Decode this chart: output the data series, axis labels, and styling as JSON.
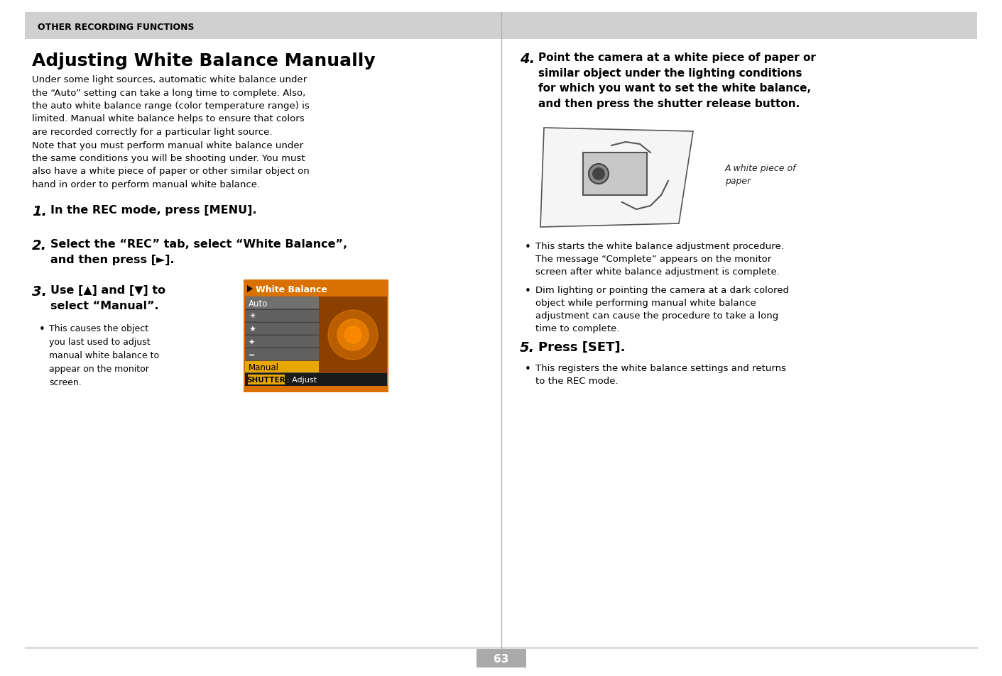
{
  "page_bg": "#ffffff",
  "header_bg": "#d0d0d0",
  "header_text": "OTHER RECORDING FUNCTIONS",
  "header_text_color": "#000000",
  "title": "Adjusting White Balance Manually",
  "title_color": "#000000",
  "divider_color": "#b0b0b0",
  "page_number": "63",
  "page_number_bg": "#aaaaaa",
  "body_text_color": "#000000",
  "left_col_intro": "Under some light sources, automatic white balance under\nthe “Auto” setting can take a long time to complete. Also,\nthe auto white balance range (color temperature range) is\nlimited. Manual white balance helps to ensure that colors\nare recorded correctly for a particular light source.\nNote that you must perform manual white balance under\nthe same conditions you will be shooting under. You must\nalso have a white piece of paper or other similar object on\nhand in order to perform manual white balance.",
  "step1": "In the REC mode, press [MENU].",
  "step2_line1": "Select the “REC” tab, select “White Balance”,",
  "step2_line2": "and then press [►].",
  "step3_line1": "Use [▲] and [▼] to",
  "step3_line2": "select “Manual”.",
  "step3_bullet": "This causes the object\nyou last used to adjust\nmanual white balance to\nappear on the monitor\nscreen.",
  "step4_text": "Point the camera at a white piece of paper or\nsimilar object under the lighting conditions\nfor which you want to set the white balance,\nand then press the shutter release button.",
  "step4_bullet1": "This starts the white balance adjustment procedure.\nThe message “Complete” appears on the monitor\nscreen after white balance adjustment is complete.",
  "step4_bullet2": "Dim lighting or pointing the camera at a dark colored\nobject while performing manual white balance\nadjustment can cause the procedure to take a long\ntime to complete.",
  "step4_caption": "A white piece of\npaper",
  "step5_line1": "Press [SET].",
  "step5_bullet": "This registers the white balance settings and returns\nto the REC mode.",
  "menu_title": "White Balance",
  "menu_orange_bg": "#d97000",
  "menu_dark_bg": "#555555",
  "menu_manual_bg": "#e8a800",
  "menu_row_bg": "#606060",
  "shutter_bar_bg": "#1a1a1a",
  "shutter_highlight_bg": "#e8a800",
  "shutter_text": ": Adjust",
  "shutter_label": "SHUTTER"
}
